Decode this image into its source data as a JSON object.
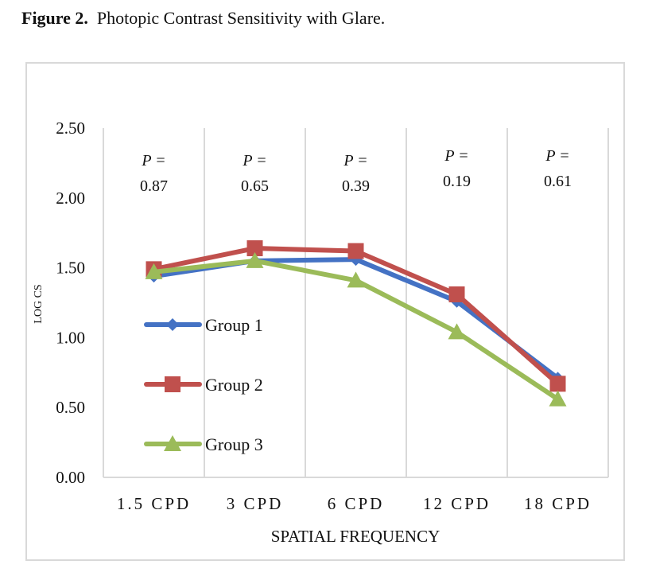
{
  "caption": {
    "label": "Figure 2.",
    "text": "Photopic Contrast Sensitivity with Glare."
  },
  "chart_data": {
    "type": "line",
    "title": "Photopic Contrast Sensitivity with Glare.",
    "xlabel": "SPATIAL FREQUENCY",
    "ylabel": "LOG CS",
    "categories": [
      "1.5 CPD",
      "3 CPD",
      "6 CPD",
      "12 CPD",
      "18 CPD"
    ],
    "ylim": [
      0,
      2.5
    ],
    "yticks": [
      "0.00",
      "0.50",
      "1.00",
      "1.50",
      "2.00",
      "2.50"
    ],
    "ytick_values": [
      0,
      0.5,
      1.0,
      1.5,
      2.0,
      2.5
    ],
    "grid": "vertical category separators",
    "legend_position": "left-middle inside plot",
    "series": [
      {
        "name": "Group 1",
        "color": "#4472c4",
        "marker": "diamond",
        "values": [
          1.44,
          1.55,
          1.56,
          1.26,
          0.71
        ]
      },
      {
        "name": "Group 2",
        "color": "#c0504d",
        "marker": "square",
        "values": [
          1.49,
          1.64,
          1.62,
          1.31,
          0.67
        ]
      },
      {
        "name": "Group 3",
        "color": "#9bbb59",
        "marker": "triangle",
        "values": [
          1.47,
          1.55,
          1.41,
          1.04,
          0.56
        ]
      }
    ],
    "annotations": [
      {
        "label": "P =",
        "value": "0.87"
      },
      {
        "label": "P =",
        "value": "0.65"
      },
      {
        "label": "P =",
        "value": "0.39"
      },
      {
        "label": "P =",
        "value": "0.19"
      },
      {
        "label": "P =",
        "value": "0.61"
      }
    ]
  }
}
